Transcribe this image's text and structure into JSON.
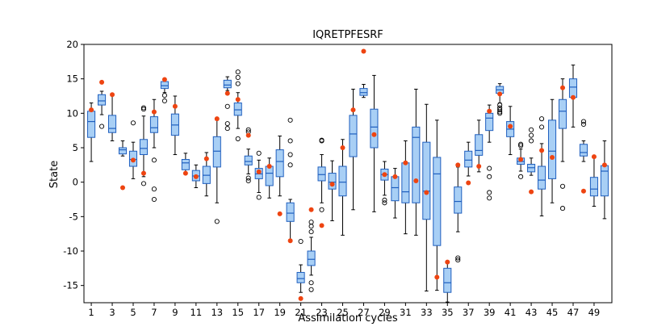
{
  "chart_data": {
    "type": "box",
    "title": "IQRETPFESRF",
    "xlabel": "Assimilation cycles",
    "ylabel": "State",
    "xlim": [
      0.3,
      50.7
    ],
    "ylim": [
      -17.5,
      20
    ],
    "xticks": [
      1,
      3,
      5,
      7,
      9,
      11,
      13,
      15,
      17,
      19,
      21,
      23,
      25,
      27,
      29,
      31,
      33,
      35,
      37,
      39,
      41,
      43,
      45,
      47,
      49
    ],
    "yticks": [
      -15,
      -10,
      -5,
      0,
      5,
      10,
      15,
      20
    ],
    "box_color": "#a8cff5",
    "median_color": "#1f5fbf",
    "truth_color": "#ee4411",
    "grid": false,
    "boxes": [
      {
        "x": 1,
        "whislo": 3.0,
        "q1": 6.5,
        "med": 8.8,
        "q3": 10.3,
        "whishi": 11.5,
        "fliers": []
      },
      {
        "x": 2,
        "whislo": 9.8,
        "q1": 11.2,
        "med": 11.8,
        "q3": 12.7,
        "whishi": 13.2,
        "fliers": [
          8.1
        ]
      },
      {
        "x": 3,
        "whislo": 6.0,
        "q1": 7.2,
        "med": 7.8,
        "q3": 9.7,
        "whishi": 12.8,
        "fliers": []
      },
      {
        "x": 4,
        "whislo": 3.8,
        "q1": 4.1,
        "med": 4.7,
        "q3": 5.0,
        "whishi": 6.0,
        "fliers": []
      },
      {
        "x": 5,
        "whislo": 0.5,
        "q1": 2.3,
        "med": 3.3,
        "q3": 4.5,
        "whishi": 5.8,
        "fliers": [
          8.6
        ]
      },
      {
        "x": 6,
        "whislo": 0.8,
        "q1": 4.0,
        "med": 4.9,
        "q3": 6.2,
        "whishi": 9.6,
        "fliers": [
          10.8,
          10.6,
          -0.2
        ]
      },
      {
        "x": 7,
        "whislo": 5.0,
        "q1": 7.2,
        "med": 7.9,
        "q3": 9.5,
        "whishi": 12.0,
        "fliers": [
          3.2,
          -1.0,
          -2.5
        ]
      },
      {
        "x": 8,
        "whislo": 13.0,
        "q1": 13.6,
        "med": 14.0,
        "q3": 14.6,
        "whishi": 15.0,
        "fliers": [
          12.6,
          11.8
        ]
      },
      {
        "x": 9,
        "whislo": 4.0,
        "q1": 6.8,
        "med": 8.3,
        "q3": 9.9,
        "whishi": 12.5,
        "fliers": []
      },
      {
        "x": 10,
        "whislo": 1.3,
        "q1": 1.8,
        "med": 2.8,
        "q3": 3.3,
        "whishi": 4.2,
        "fliers": []
      },
      {
        "x": 11,
        "whislo": -0.8,
        "q1": 0.2,
        "med": 0.9,
        "q3": 1.7,
        "whishi": 2.5,
        "fliers": []
      },
      {
        "x": 12,
        "whislo": -2.0,
        "q1": -0.2,
        "med": 1.0,
        "q3": 2.3,
        "whishi": 4.3,
        "fliers": []
      },
      {
        "x": 13,
        "whislo": -3.0,
        "q1": 2.2,
        "med": 4.5,
        "q3": 6.6,
        "whishi": 9.0,
        "fliers": [
          -5.7
        ]
      },
      {
        "x": 14,
        "whislo": 13.3,
        "q1": 13.7,
        "med": 14.1,
        "q3": 14.8,
        "whishi": 15.3,
        "fliers": [
          11.0,
          8.5,
          7.8
        ]
      },
      {
        "x": 15,
        "whislo": 7.8,
        "q1": 9.7,
        "med": 10.5,
        "q3": 11.5,
        "whishi": 13.0,
        "fliers": [
          16.0,
          15.2,
          14.3,
          6.3
        ]
      },
      {
        "x": 16,
        "whislo": 1.2,
        "q1": 2.5,
        "med": 3.0,
        "q3": 3.8,
        "whishi": 4.8,
        "fliers": [
          7.6,
          7.3,
          0.6,
          0.2
        ]
      },
      {
        "x": 17,
        "whislo": -1.5,
        "q1": 0.5,
        "med": 1.2,
        "q3": 2.0,
        "whishi": 3.2,
        "fliers": [
          4.2,
          -2.2
        ]
      },
      {
        "x": 18,
        "whislo": -2.3,
        "q1": -0.5,
        "med": 1.3,
        "q3": 2.3,
        "whishi": 3.5,
        "fliers": []
      },
      {
        "x": 19,
        "whislo": -2.0,
        "q1": 0.8,
        "med": 3.0,
        "q3": 4.7,
        "whishi": 6.7,
        "fliers": []
      },
      {
        "x": 20,
        "whislo": -8.5,
        "q1": -5.7,
        "med": -4.5,
        "q3": -3.0,
        "whishi": -2.5,
        "fliers": [
          9.0,
          6.0,
          4.0,
          2.5
        ]
      },
      {
        "x": 21,
        "whislo": -16.0,
        "q1": -14.6,
        "med": -14.0,
        "q3": -13.1,
        "whishi": -12.0,
        "fliers": [
          -8.6
        ]
      },
      {
        "x": 22,
        "whislo": -13.5,
        "q1": -12.1,
        "med": -11.2,
        "q3": -10.0,
        "whishi": -8.0,
        "fliers": [
          -5.8,
          -6.4,
          -7.2,
          -15.6,
          -14.6
        ]
      },
      {
        "x": 23,
        "whislo": -3.0,
        "q1": 0.2,
        "med": 1.1,
        "q3": 2.2,
        "whishi": 4.0,
        "fliers": [
          6.0,
          6.1,
          -4.0
        ]
      },
      {
        "x": 24,
        "whislo": -5.6,
        "q1": -1.0,
        "med": 0.0,
        "q3": 1.3,
        "whishi": 3.1,
        "fliers": []
      },
      {
        "x": 25,
        "whislo": -7.7,
        "q1": -2.0,
        "med": 0.0,
        "q3": 2.3,
        "whishi": 6.2,
        "fliers": []
      },
      {
        "x": 26,
        "whislo": -4.0,
        "q1": 3.7,
        "med": 7.0,
        "q3": 9.7,
        "whishi": 13.5,
        "fliers": []
      },
      {
        "x": 27,
        "whislo": 12.3,
        "q1": 12.6,
        "med": 13.0,
        "q3": 13.6,
        "whishi": 14.2,
        "fliers": []
      },
      {
        "x": 28,
        "whislo": -4.3,
        "q1": 5.0,
        "med": 8.0,
        "q3": 10.6,
        "whishi": 15.5,
        "fliers": []
      },
      {
        "x": 29,
        "whislo": -1.9,
        "q1": 0.3,
        "med": 1.1,
        "q3": 1.9,
        "whishi": 3.0,
        "fliers": [
          -2.6,
          -3.0
        ]
      },
      {
        "x": 30,
        "whislo": -5.2,
        "q1": -2.7,
        "med": -0.8,
        "q3": 0.8,
        "whishi": 2.0,
        "fliers": []
      },
      {
        "x": 31,
        "whislo": -7.5,
        "q1": -3.0,
        "med": -1.4,
        "q3": 2.8,
        "whishi": 6.0,
        "fliers": []
      },
      {
        "x": 32,
        "whislo": -7.7,
        "q1": -3.0,
        "med": 6.5,
        "q3": 8.0,
        "whishi": 13.5,
        "fliers": []
      },
      {
        "x": 33,
        "whislo": -15.8,
        "q1": -5.4,
        "med": -1.3,
        "q3": 5.8,
        "whishi": 11.3,
        "fliers": []
      },
      {
        "x": 34,
        "whislo": -15.7,
        "q1": -9.2,
        "med": 1.2,
        "q3": 3.6,
        "whishi": 9.0,
        "fliers": []
      },
      {
        "x": 35,
        "whislo": -17.4,
        "q1": -16.0,
        "med": -14.6,
        "q3": -12.5,
        "whishi": -11.7,
        "fliers": []
      },
      {
        "x": 36,
        "whislo": -7.2,
        "q1": -4.5,
        "med": -2.8,
        "q3": -0.7,
        "whishi": 2.2,
        "fliers": [
          -11.0,
          -11.3
        ]
      },
      {
        "x": 37,
        "whislo": 0.9,
        "q1": 2.2,
        "med": 3.2,
        "q3": 4.5,
        "whishi": 5.8,
        "fliers": []
      },
      {
        "x": 38,
        "whislo": 1.5,
        "q1": 3.9,
        "med": 4.6,
        "q3": 6.9,
        "whishi": 9.0,
        "fliers": []
      },
      {
        "x": 39,
        "whislo": 5.8,
        "q1": 7.5,
        "med": 9.3,
        "q3": 10.0,
        "whishi": 11.2,
        "fliers": [
          2.0,
          0.8,
          -1.5,
          -2.3
        ]
      },
      {
        "x": 40,
        "whislo": 11.5,
        "q1": 12.9,
        "med": 13.4,
        "q3": 13.9,
        "whishi": 14.3,
        "fliers": [
          11.2,
          10.8,
          10.5,
          10.2,
          10.0
        ]
      },
      {
        "x": 41,
        "whislo": 4.0,
        "q1": 6.6,
        "med": 7.7,
        "q3": 8.8,
        "whishi": 11.0,
        "fliers": []
      },
      {
        "x": 42,
        "whislo": 1.6,
        "q1": 2.6,
        "med": 3.0,
        "q3": 3.5,
        "whishi": 4.8,
        "fliers": [
          5.3,
          5.5,
          0.8
        ]
      },
      {
        "x": 43,
        "whislo": 1.0,
        "q1": 1.5,
        "med": 2.1,
        "q3": 2.6,
        "whishi": 3.5,
        "fliers": [
          7.6,
          6.8,
          6.0
        ]
      },
      {
        "x": 44,
        "whislo": -4.9,
        "q1": -1.0,
        "med": 0.3,
        "q3": 2.3,
        "whishi": 5.6,
        "fliers": [
          9.2,
          8.0
        ]
      },
      {
        "x": 45,
        "whislo": -3.0,
        "q1": 0.5,
        "med": 4.5,
        "q3": 9.0,
        "whishi": 12.0,
        "fliers": []
      },
      {
        "x": 46,
        "whislo": 3.0,
        "q1": 7.8,
        "med": 10.3,
        "q3": 12.0,
        "whishi": 15.0,
        "fliers": [
          -0.6,
          -3.8
        ]
      },
      {
        "x": 47,
        "whislo": 8.0,
        "q1": 12.3,
        "med": 13.8,
        "q3": 15.0,
        "whishi": 17.0,
        "fliers": []
      },
      {
        "x": 48,
        "whislo": 3.0,
        "q1": 3.8,
        "med": 4.3,
        "q3": 5.5,
        "whishi": 6.0,
        "fliers": [
          8.8,
          8.4
        ]
      },
      {
        "x": 49,
        "whislo": -3.5,
        "q1": -2.0,
        "med": -1.0,
        "q3": 0.7,
        "whishi": 3.8,
        "fliers": []
      },
      {
        "x": 50,
        "whislo": -5.3,
        "q1": -2.0,
        "med": 1.6,
        "q3": 2.4,
        "whishi": 6.0,
        "fliers": []
      }
    ],
    "truth": [
      10.5,
      14.5,
      12.7,
      -0.8,
      3.2,
      1.3,
      10.2,
      14.9,
      11.0,
      1.3,
      0.8,
      3.4,
      9.2,
      12.9,
      12.0,
      6.8,
      1.5,
      2.3,
      -4.6,
      -8.5,
      -16.9,
      -4.0,
      -6.3,
      -0.3,
      5.0,
      10.5,
      19.0,
      6.9,
      1.1,
      0.8,
      2.8,
      0.2,
      -1.5,
      -13.8,
      -11.6,
      2.5,
      -0.1,
      2.3,
      10.3,
      12.8,
      8.1,
      3.3,
      -1.4,
      4.6,
      3.6,
      13.7,
      12.3,
      -1.3,
      3.7,
      2.5
    ]
  }
}
